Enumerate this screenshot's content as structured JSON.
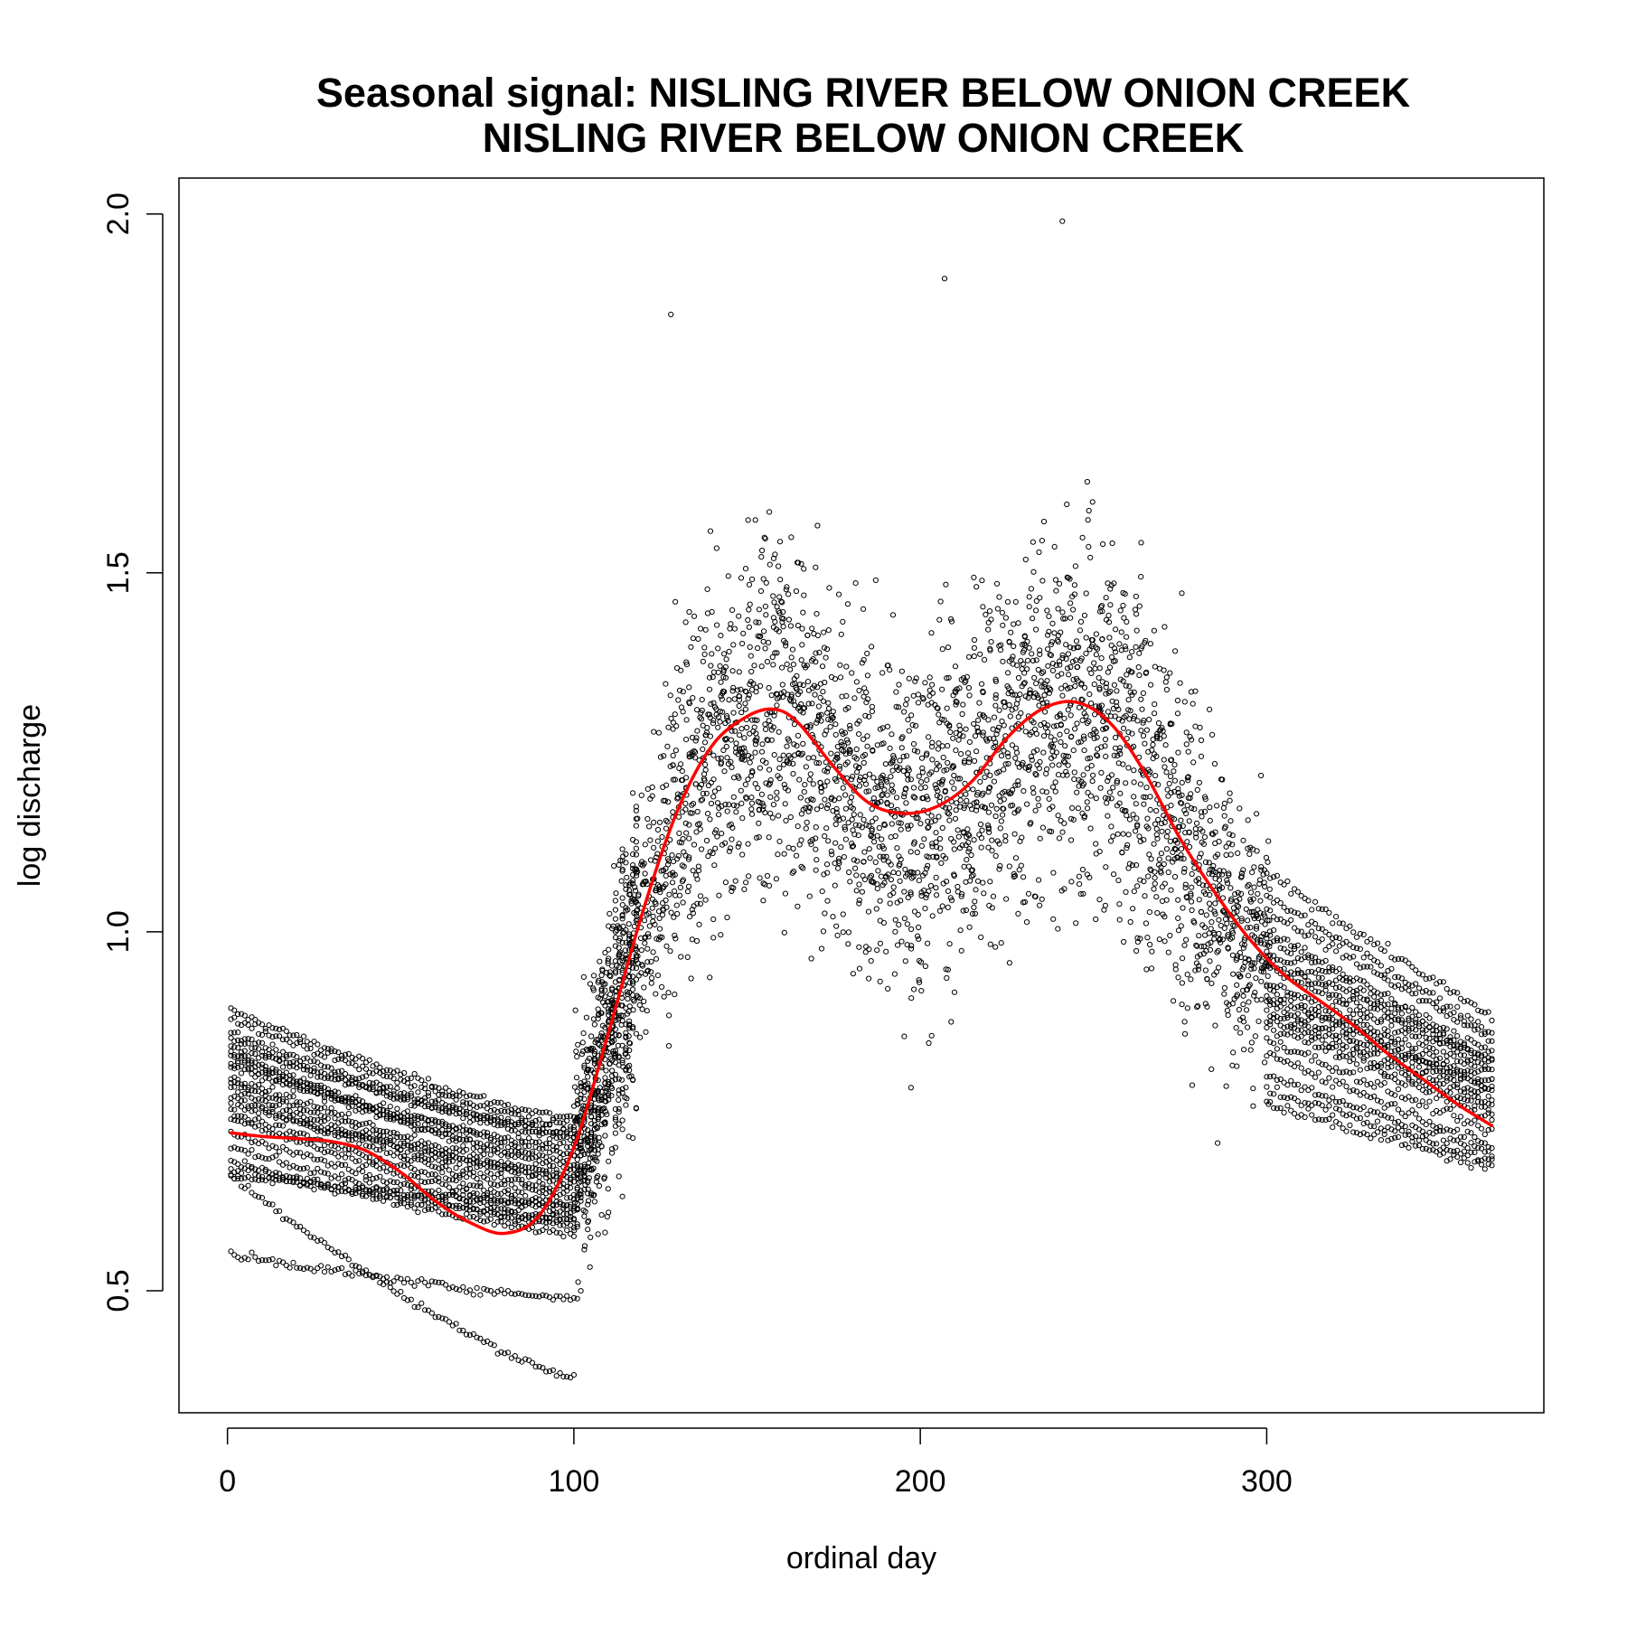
{
  "chart_data": {
    "type": "scatter",
    "title_line1": "Seasonal signal: NISLING RIVER BELOW ONION CREEK",
    "title_line2": "NISLING RIVER BELOW ONION CREEK",
    "xlabel": "ordinal day",
    "ylabel": "log discharge",
    "xlim": [
      -14,
      380
    ],
    "ylim": [
      0.33,
      2.05
    ],
    "x_ticks": [
      0,
      100,
      200,
      300
    ],
    "x_tick_labels": [
      "0",
      "100",
      "200",
      "300"
    ],
    "y_ticks": [
      0.5,
      1.0,
      1.5,
      2.0
    ],
    "y_tick_labels": [
      "0.5",
      "1.0",
      "1.5",
      "2.0"
    ],
    "grid": false,
    "legend": "none",
    "colors": {
      "points": "#000000",
      "smooth": "#ff0000"
    },
    "series": [
      {
        "kind": "smooth-curve",
        "x": [
          1,
          10,
          20,
          30,
          40,
          50,
          60,
          70,
          80,
          90,
          100,
          110,
          120,
          130,
          140,
          150,
          158,
          165,
          175,
          185,
          195,
          205,
          215,
          225,
          235,
          245,
          255,
          265,
          275,
          285,
          295,
          305,
          315,
          325,
          335,
          345,
          355,
          365
        ],
        "y": [
          0.72,
          0.715,
          0.712,
          0.708,
          0.695,
          0.665,
          0.625,
          0.595,
          0.58,
          0.605,
          0.7,
          0.86,
          1.03,
          1.17,
          1.26,
          1.3,
          1.31,
          1.29,
          1.23,
          1.18,
          1.165,
          1.175,
          1.21,
          1.27,
          1.31,
          1.32,
          1.29,
          1.22,
          1.13,
          1.055,
          0.99,
          0.94,
          0.905,
          0.87,
          0.83,
          0.795,
          0.76,
          0.73
        ]
      },
      {
        "kind": "winter-recession-tracks",
        "x_range": [
          1,
          100
        ],
        "start_values": [
          0.89,
          0.88,
          0.86,
          0.85,
          0.84,
          0.83,
          0.83,
          0.82,
          0.81,
          0.8,
          0.79,
          0.78,
          0.77,
          0.76,
          0.75,
          0.74,
          0.72,
          0.7,
          0.68,
          0.67,
          0.66,
          0.55,
          0.66
        ],
        "end_values": [
          0.74,
          0.73,
          0.72,
          0.71,
          0.72,
          0.69,
          0.67,
          0.68,
          0.7,
          0.66,
          0.65,
          0.64,
          0.63,
          0.66,
          0.62,
          0.61,
          0.6,
          0.59,
          0.58,
          0.6,
          0.62,
          0.49,
          0.38
        ]
      },
      {
        "kind": "fall-recession-tracks",
        "x_range": [
          300,
          365
        ],
        "start_values": [
          1.08,
          1.05,
          1.03,
          1.0,
          0.99,
          0.97,
          0.96,
          0.95,
          0.93,
          0.92,
          0.91,
          0.9,
          0.89,
          0.88,
          0.87,
          0.85,
          0.83,
          0.8,
          0.78,
          0.76
        ],
        "end_values": [
          0.88,
          0.86,
          0.85,
          0.83,
          0.82,
          0.82,
          0.81,
          0.8,
          0.79,
          0.78,
          0.78,
          0.77,
          0.76,
          0.75,
          0.74,
          0.72,
          0.7,
          0.69,
          0.68,
          0.67
        ]
      },
      {
        "kind": "scatter-cloud",
        "x_range": [
          100,
          300
        ],
        "y_range": [
          0.76,
          1.99
        ],
        "note_peaks": [
          [
            241,
            1.99
          ],
          [
            207,
            1.91
          ],
          [
            128,
            1.86
          ]
        ]
      }
    ]
  }
}
